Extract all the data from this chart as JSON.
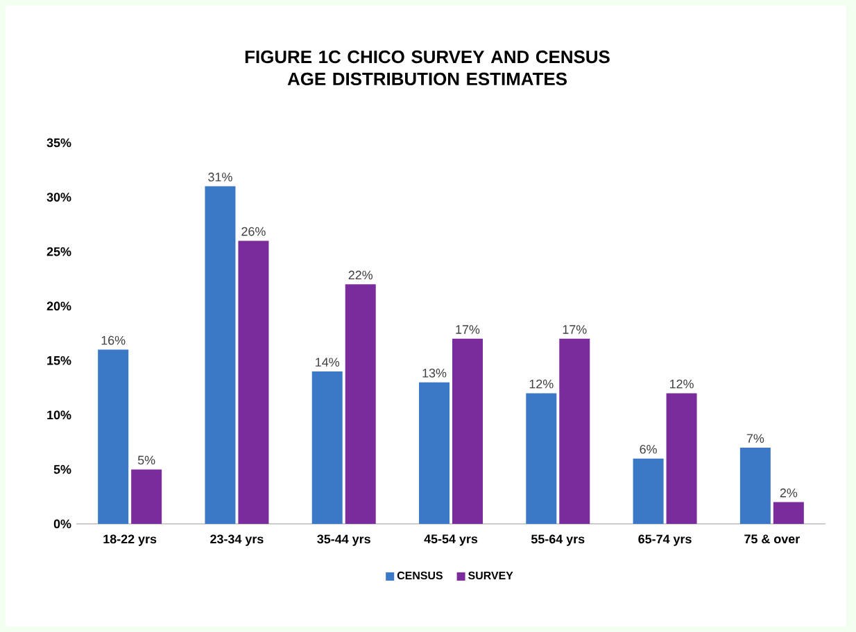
{
  "chart_data": {
    "type": "bar",
    "title": "FIGURE 1C  CHICO SURVEY AND CENSUS\nAGE DISTRIBUTION ESTIMATES",
    "categories": [
      "18-22 yrs",
      "23-34 yrs",
      "35-44 yrs",
      "45-54 yrs",
      "55-64 yrs",
      "65-74 yrs",
      "75 & over"
    ],
    "series": [
      {
        "name": "CENSUS",
        "color": "#3b78c6",
        "values": [
          16,
          31,
          14,
          13,
          12,
          6,
          7
        ],
        "value_labels": [
          "16%",
          "31%",
          "14%",
          "13%",
          "12%",
          "6%",
          "7%"
        ]
      },
      {
        "name": "SURVEY",
        "color": "#7b2c9c",
        "values": [
          5,
          26,
          22,
          17,
          17,
          12,
          2
        ],
        "value_labels": [
          "5%",
          "26%",
          "22%",
          "17%",
          "17%",
          "12%",
          "2%"
        ]
      }
    ],
    "ylim": [
      0,
      35
    ],
    "yticks": [
      {
        "value": 0,
        "label": "0%"
      },
      {
        "value": 5,
        "label": "5%"
      },
      {
        "value": 10,
        "label": "10%"
      },
      {
        "value": 15,
        "label": "15%"
      },
      {
        "value": 20,
        "label": "20%"
      },
      {
        "value": 25,
        "label": "25%"
      },
      {
        "value": 30,
        "label": "30%"
      },
      {
        "value": 35,
        "label": "35%"
      }
    ],
    "grid": false,
    "legend": "bottom"
  }
}
